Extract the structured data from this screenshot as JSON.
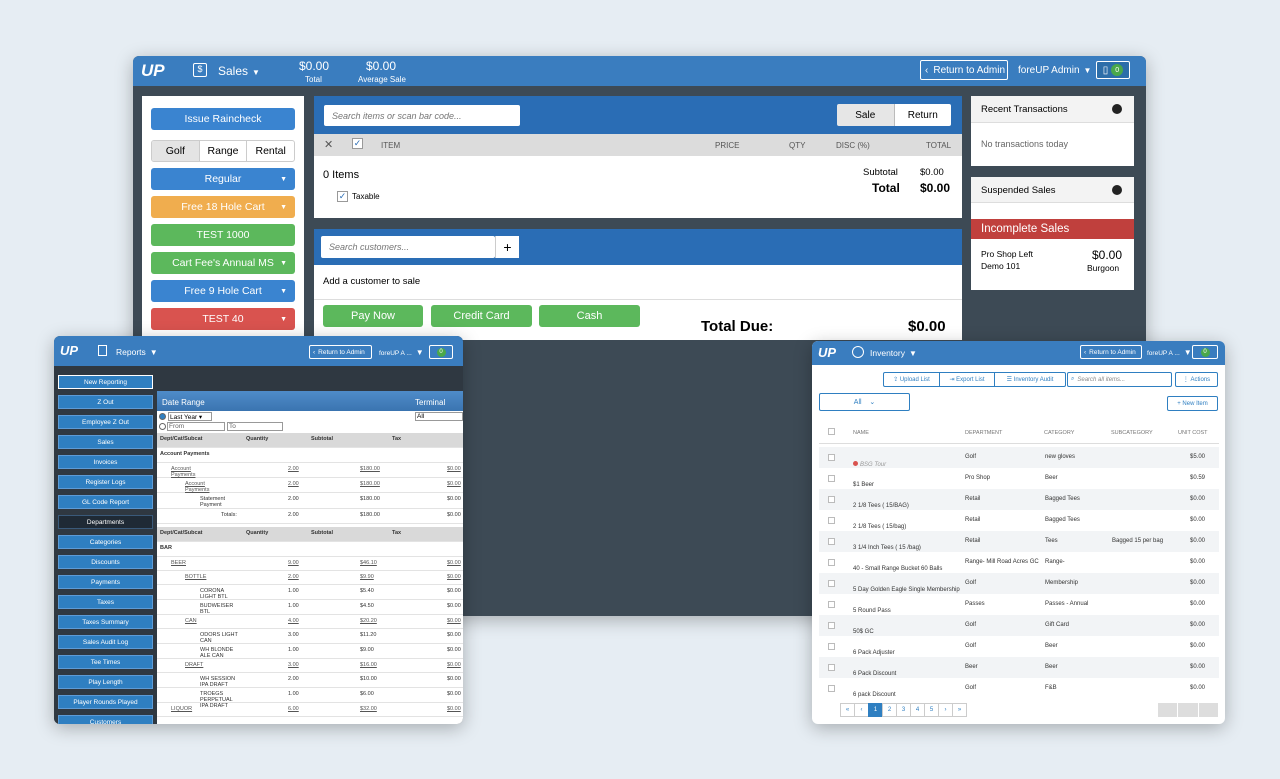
{
  "main": {
    "logo": "UP",
    "module": "Sales",
    "total_value": "$0.00",
    "total_label": "Total",
    "avg_value": "$0.00",
    "avg_label": "Average Sale",
    "return_admin": "Return to Admin",
    "user": "foreUP Admin",
    "badge": "0",
    "left": {
      "issue_raincheck": "Issue Raincheck",
      "tabs": [
        "Golf",
        "Range",
        "Rental"
      ],
      "buttons": [
        {
          "label": "Regular",
          "color": "#3a84d0",
          "dropdown": true
        },
        {
          "label": "Free 18 Hole Cart",
          "color": "#f0ad4e",
          "dropdown": true
        },
        {
          "label": "TEST 1000",
          "color": "#5cb85c",
          "dropdown": false
        },
        {
          "label": "Cart Fee's Annual MS",
          "color": "#5cb85c",
          "dropdown": true
        },
        {
          "label": "Free 9 Hole Cart",
          "color": "#3a84d0",
          "dropdown": true
        },
        {
          "label": "TEST 40",
          "color": "#d9534f",
          "dropdown": true
        }
      ]
    },
    "cart": {
      "search_placeholder": "Search items or scan bar code...",
      "sale": "Sale",
      "return": "Return",
      "col_item": "ITEM",
      "col_price": "PRICE",
      "col_qty": "QTY",
      "col_disc": "DISC (%)",
      "col_total": "TOTAL",
      "items_count": "0 Items",
      "taxable": "Taxable",
      "subtotal_label": "Subtotal",
      "subtotal_value": "$0.00",
      "total_label": "Total",
      "total_value": "$0.00"
    },
    "customer": {
      "placeholder": "Search customers...",
      "add_text": "Add a customer to sale"
    },
    "pay": {
      "pay_now": "Pay Now",
      "credit_card": "Credit Card",
      "cash": "Cash",
      "total_due_label": "Total Due:",
      "total_due_value": "$0.00"
    },
    "right": {
      "recent_title": "Recent Transactions",
      "recent_empty": "No transactions today",
      "suspended_title": "Suspended Sales",
      "incomplete": "Incomplete Sales",
      "sale_name": "Pro Shop Left",
      "sale_sub": "Demo 101",
      "sale_amount": "$0.00",
      "sale_owner": "Burgoon"
    }
  },
  "reports": {
    "logo": "UP",
    "module": "Reports",
    "return_admin": "Return to Admin",
    "user": "foreUP A ...",
    "badge": "0",
    "side": [
      "New Reporting",
      "Z Out",
      "Employee Z Out",
      "Sales",
      "Invoices",
      "Register Logs",
      "GL Code Report",
      "Departments",
      "Categories",
      "Discounts",
      "Payments",
      "Taxes",
      "Taxes Summary",
      "Sales Audit Log",
      "Tee Times",
      "Play Length",
      "Player Rounds Played",
      "Customers"
    ],
    "date_range": "Date Range",
    "terminal": "Terminal",
    "last_year": "Last Year",
    "all": "All",
    "from": "From",
    "to": "To",
    "headers": [
      "Dept/Cat/Subcat",
      "Quantity",
      "Subtotal",
      "Tax"
    ],
    "section1": "Account Payments",
    "rows1": [
      {
        "name": "Account Payments",
        "qty": "2.00",
        "sub": "$180.00",
        "tax": "$0.00",
        "indent": 1,
        "link": true
      },
      {
        "name": "Account Payments",
        "qty": "2.00",
        "sub": "$180.00",
        "tax": "$0.00",
        "indent": 2,
        "link": true
      },
      {
        "name": "Statement Payment",
        "qty": "2.00",
        "sub": "$180.00",
        "tax": "$0.00",
        "indent": 3,
        "link": false
      }
    ],
    "totals_label": "Totals:",
    "totals": {
      "qty": "2.00",
      "sub": "$180.00",
      "tax": "$0.00"
    },
    "section2": "BAR",
    "rows2": [
      {
        "name": "BEER",
        "qty": "9.00",
        "sub": "$46.10",
        "tax": "$0.00",
        "indent": 1,
        "link": true
      },
      {
        "name": "BOTTLE",
        "qty": "2.00",
        "sub": "$9.90",
        "tax": "$0.00",
        "indent": 2,
        "link": true
      },
      {
        "name": "CORONA LIGHT BTL",
        "qty": "1.00",
        "sub": "$5.40",
        "tax": "$0.00",
        "indent": 3,
        "link": false
      },
      {
        "name": "BUDWEISER BTL",
        "qty": "1.00",
        "sub": "$4.50",
        "tax": "$0.00",
        "indent": 3,
        "link": false
      },
      {
        "name": "CAN",
        "qty": "4.00",
        "sub": "$20.20",
        "tax": "$0.00",
        "indent": 2,
        "link": true
      },
      {
        "name": "ODORS LIGHT CAN",
        "qty": "3.00",
        "sub": "$11.20",
        "tax": "$0.00",
        "indent": 3,
        "link": false
      },
      {
        "name": "WH BLONDE ALE CAN",
        "qty": "1.00",
        "sub": "$9.00",
        "tax": "$0.00",
        "indent": 3,
        "link": false
      },
      {
        "name": "DRAFT",
        "qty": "3.00",
        "sub": "$16.00",
        "tax": "$0.00",
        "indent": 2,
        "link": true
      },
      {
        "name": "WH SESSION IPA DRAFT",
        "qty": "2.00",
        "sub": "$10.00",
        "tax": "$0.00",
        "indent": 3,
        "link": false
      },
      {
        "name": "TROEGS PERPETUAL IPA DRAFT",
        "qty": "1.00",
        "sub": "$6.00",
        "tax": "$0.00",
        "indent": 3,
        "link": false
      },
      {
        "name": "LIQUOR",
        "qty": "6.00",
        "sub": "$32.00",
        "tax": "$0.00",
        "indent": 1,
        "link": true
      }
    ]
  },
  "inventory": {
    "logo": "UP",
    "module": "Inventory",
    "return_admin": "Return to Admin",
    "user": "foreUP A ...",
    "badge": "0",
    "upload": "Upload List",
    "export": "Export List",
    "audit": "Inventory Audit",
    "search_placeholder": "Search all items...",
    "actions": "Actions",
    "filter": "All",
    "new_item": "New Item",
    "headers": [
      "NAME",
      "DEPARTMENT",
      "CATEGORY",
      "SUBCATEGORY",
      "UNIT COST"
    ],
    "rows": [
      {
        "name": "BSG Tour",
        "dept": "Golf",
        "cat": "new gloves",
        "sub": "",
        "cost": "$5.00",
        "inactive": true
      },
      {
        "name": "$1 Beer",
        "dept": "Pro Shop",
        "cat": "Beer",
        "sub": "",
        "cost": "$0.59"
      },
      {
        "name": "2 1/8 Tees ( 15/BAG)",
        "dept": "Retail",
        "cat": "Bagged Tees",
        "sub": "",
        "cost": "$0.00"
      },
      {
        "name": "2 1/8 Tees ( 15/bag)",
        "dept": "Retail",
        "cat": "Bagged Tees",
        "sub": "",
        "cost": "$0.00"
      },
      {
        "name": "3 1/4 Inch Tees ( 15 /bag)",
        "dept": "Retail",
        "cat": "Tees",
        "sub": "Bagged 15 per bag",
        "cost": "$0.00"
      },
      {
        "name": "40 - Small Range Bucket 60 Balls",
        "dept": "Range- Mill Road Acres GC",
        "cat": "Range-",
        "sub": "",
        "cost": "$0.00"
      },
      {
        "name": "5 Day Golden Eagle Single Membership",
        "dept": "Golf",
        "cat": "Membership",
        "sub": "",
        "cost": "$0.00"
      },
      {
        "name": "5 Round Pass",
        "dept": "Passes",
        "cat": "Passes - Annual",
        "sub": "",
        "cost": "$0.00"
      },
      {
        "name": "50$ GC",
        "dept": "Golf",
        "cat": "Gift Card",
        "sub": "",
        "cost": "$0.00"
      },
      {
        "name": "6 Pack Adjuster",
        "dept": "Golf",
        "cat": "Beer",
        "sub": "",
        "cost": "$0.00"
      },
      {
        "name": "6 Pack Discount",
        "dept": "Beer",
        "cat": "Beer",
        "sub": "",
        "cost": "$0.00"
      },
      {
        "name": "6 pack Discount",
        "dept": "Golf",
        "cat": "F&B",
        "sub": "",
        "cost": "$0.00"
      }
    ],
    "pages": [
      "1",
      "2",
      "3",
      "4",
      "5"
    ]
  }
}
